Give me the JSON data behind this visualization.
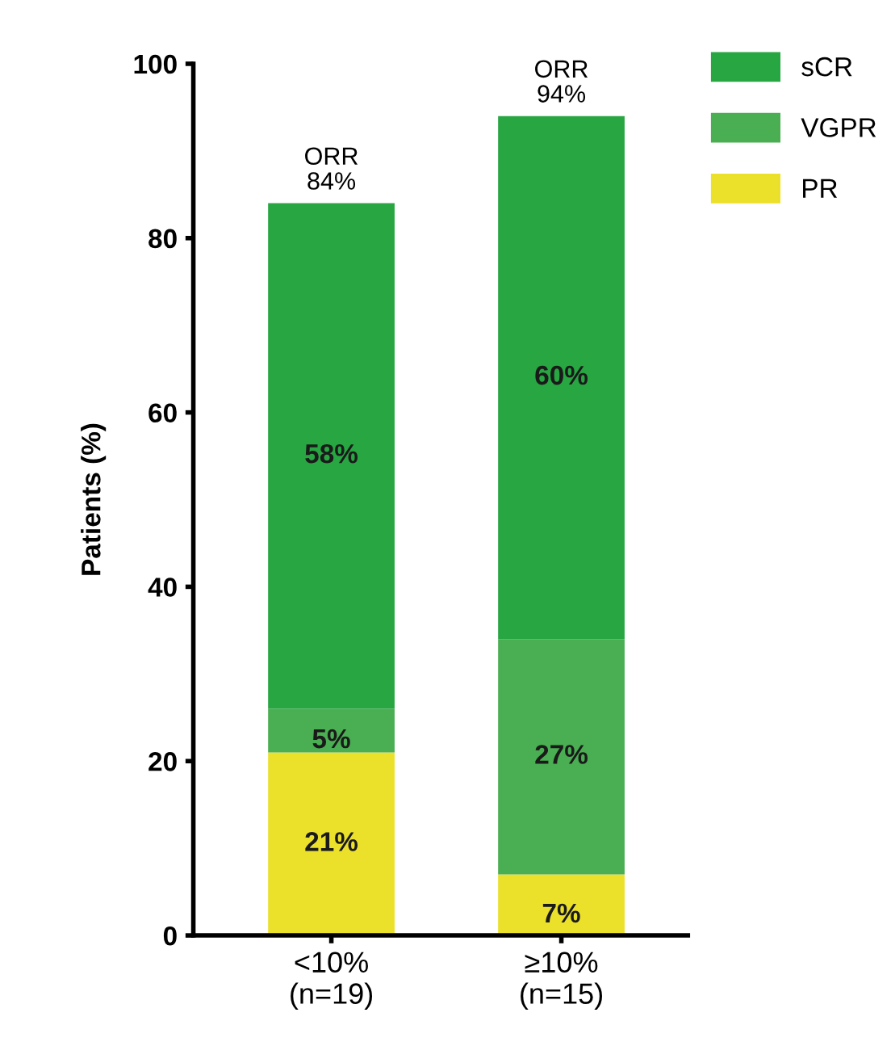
{
  "chart_data": {
    "type": "bar",
    "stacked": true,
    "ylabel": "Patients (%)",
    "categories": [
      "<10%\n(n=19)",
      "≥10%\n(n=15)"
    ],
    "series": [
      {
        "name": "PR",
        "color": "#ebe02a",
        "values": [
          21,
          7
        ],
        "value_labels": [
          "21%",
          "7%"
        ]
      },
      {
        "name": "VGPR",
        "color": "#4aae52",
        "values": [
          5,
          27
        ],
        "value_labels": [
          "5%",
          "27%"
        ]
      },
      {
        "name": "sCR",
        "color": "#27a642",
        "values": [
          58,
          60
        ],
        "value_labels": [
          "58%",
          "60%"
        ]
      }
    ],
    "totals": [
      "ORR\n84%",
      "ORR\n94%"
    ],
    "ylim": [
      0,
      100
    ],
    "yticks": [
      0,
      20,
      40,
      60,
      80,
      100
    ],
    "grid": false,
    "legend": "top right"
  }
}
